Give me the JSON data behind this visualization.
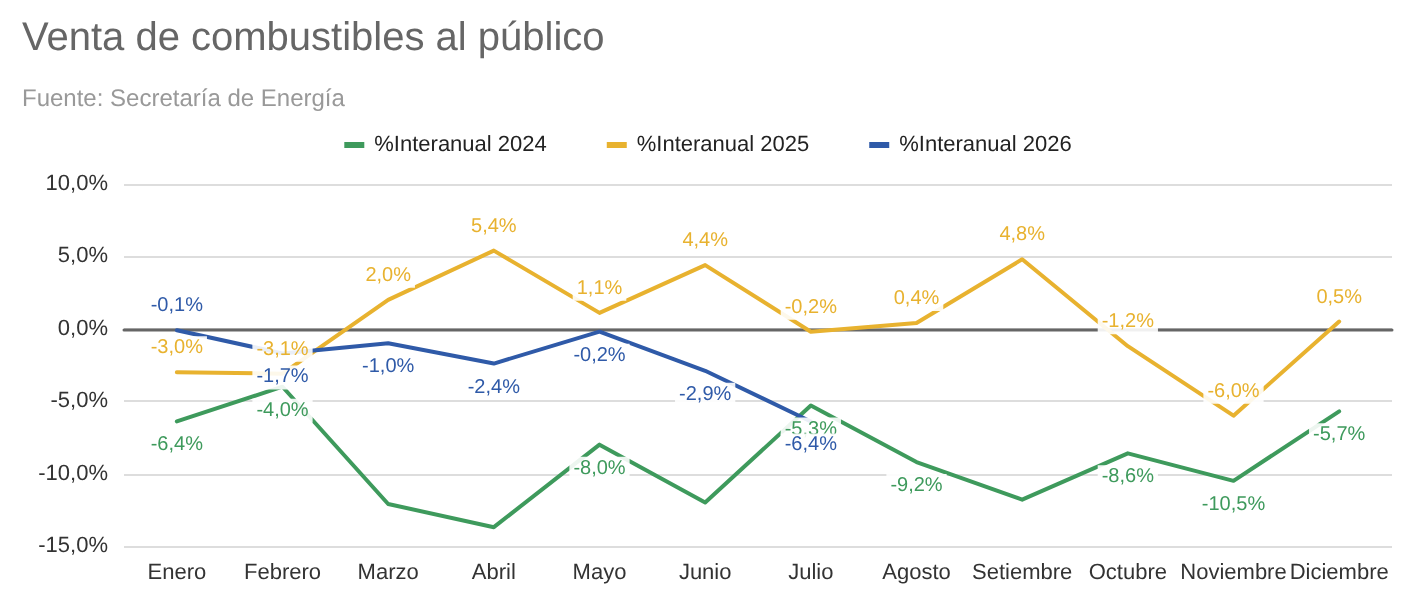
{
  "chart_data": {
    "type": "line",
    "title": "Venta de combustibles al público",
    "subtitle": "Fuente: Secretaría de Energía",
    "categories": [
      "Enero",
      "Febrero",
      "Marzo",
      "Abril",
      "Mayo",
      "Junio",
      "Julio",
      "Agosto",
      "Setiembre",
      "Octubre",
      "Noviembre",
      "Diciembre"
    ],
    "series": [
      {
        "name": "%Interanual 2024",
        "color": "#3e9a5c",
        "values": [
          -6.4,
          -4.0,
          -12.1,
          -13.7,
          -8.0,
          -12.0,
          -5.3,
          -9.2,
          -11.8,
          -8.6,
          -10.5,
          -5.7
        ],
        "value_labels": [
          "-6,4%",
          "-4,0%",
          null,
          null,
          "-8,0%",
          null,
          "-5,3%",
          "-9,2%",
          null,
          "-8,6%",
          "-10,5%",
          "-5,7%"
        ]
      },
      {
        "name": "%Interanual 2025",
        "color": "#e8b22f",
        "values": [
          -3.0,
          -3.1,
          2.0,
          5.4,
          1.1,
          4.4,
          -0.2,
          0.4,
          4.8,
          -1.2,
          -6.0,
          0.5
        ],
        "value_labels": [
          "-3,0%",
          "-3,1%",
          "2,0%",
          "5,4%",
          "1,1%",
          "4,4%",
          "-0,2%",
          "0,4%",
          "4,8%",
          "-1,2%",
          "-6,0%",
          "0,5%"
        ]
      },
      {
        "name": "%Interanual 2026",
        "color": "#2f5aa8",
        "values": [
          -0.1,
          -1.7,
          -1.0,
          -2.4,
          -0.2,
          -2.9,
          -6.4,
          null,
          null,
          null,
          null,
          null
        ],
        "value_labels": [
          "-0,1%",
          "-1,7%",
          "-1,0%",
          "-2,4%",
          "-0,2%",
          "-2,9%",
          "-6,4%",
          null,
          null,
          null,
          null,
          null
        ]
      }
    ],
    "ylim": [
      -15,
      10
    ],
    "yticks": [
      {
        "value": -15,
        "label": "-15,0%"
      },
      {
        "value": -10,
        "label": "-10,0%"
      },
      {
        "value": -5,
        "label": "-5,0%"
      },
      {
        "value": 0,
        "label": "0,0%"
      },
      {
        "value": 5,
        "label": "5,0%"
      },
      {
        "value": 10,
        "label": "10,0%"
      }
    ],
    "grid": "y",
    "legend": "top",
    "marker": "none",
    "line_style": "solid"
  }
}
